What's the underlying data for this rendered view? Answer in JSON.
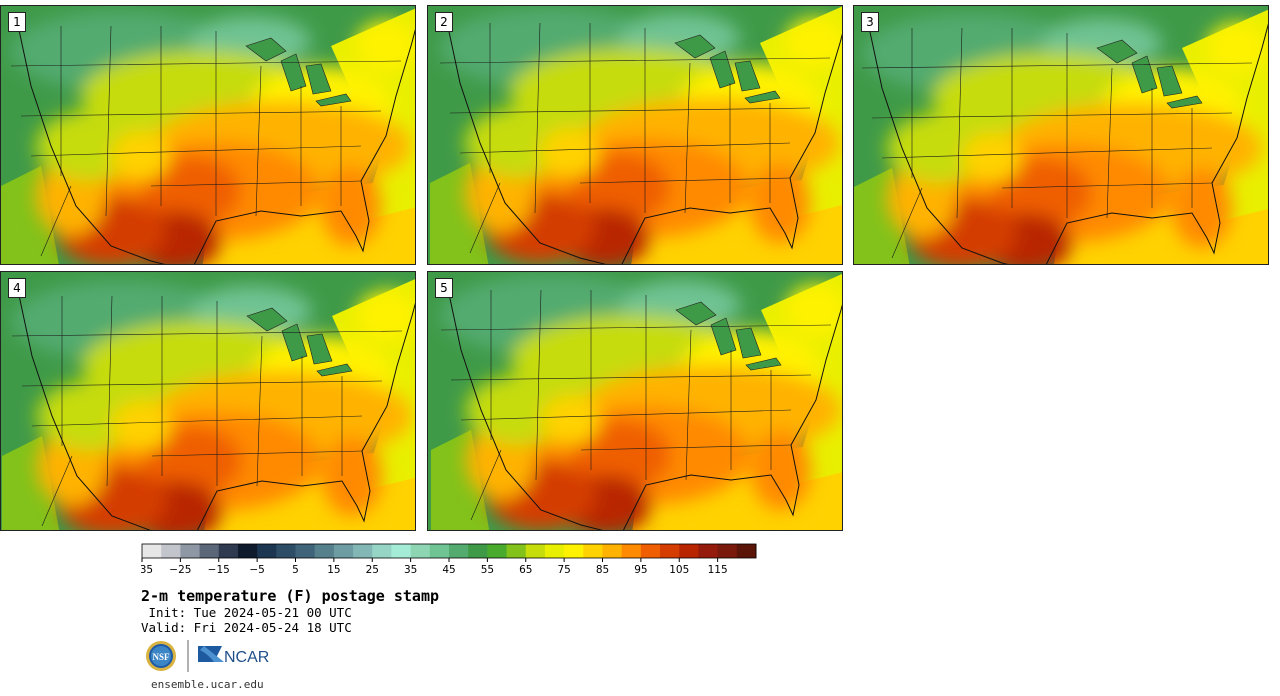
{
  "panels": [
    {
      "label": "1"
    },
    {
      "label": "2"
    },
    {
      "label": "3"
    },
    {
      "label": "4"
    },
    {
      "label": "5"
    }
  ],
  "colorbar": {
    "tick_labels": [
      "−35",
      "−25",
      "−15",
      "−5",
      "5",
      "15",
      "25",
      "35",
      "45",
      "55",
      "65",
      "75",
      "85",
      "95",
      "105",
      "115"
    ],
    "colors": [
      "#e7e7e7",
      "#c2c5cc",
      "#8e98a5",
      "#5b6679",
      "#2f3a51",
      "#0f1a2c",
      "#1c3551",
      "#2d4d67",
      "#3f6479",
      "#55808c",
      "#6d9ca3",
      "#82b7b6",
      "#96d5c6",
      "#a5ecd7",
      "#8ed6b3",
      "#70c393",
      "#53ab6f",
      "#3f9a48",
      "#4aaa2e",
      "#82c21a",
      "#c6dc0b",
      "#e9ef00",
      "#fff200",
      "#ffd200",
      "#ffb200",
      "#ff8a00",
      "#ef5e00",
      "#d43c00",
      "#b82600",
      "#951c0c",
      "#7a1a0c",
      "#5a1508"
    ]
  },
  "title": "2-m temperature (F) postage stamp",
  "init_line": " Init: Tue 2024-05-21 00 UTC",
  "valid_line": "Valid: Fri 2024-05-24 18 UTC",
  "logos": {
    "nsf": "NSF",
    "ncar": "NCAR"
  },
  "url": "ensemble.ucar.edu"
}
